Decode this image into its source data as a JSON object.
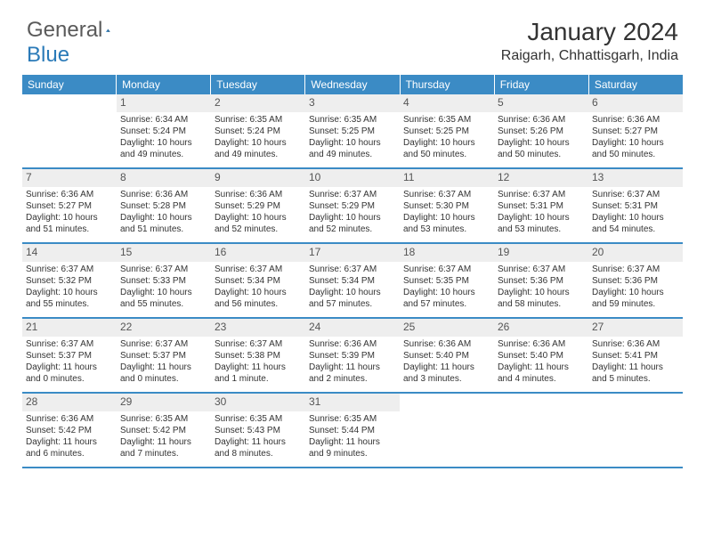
{
  "logo": {
    "general": "General",
    "blue": "Blue"
  },
  "title": "January 2024",
  "location": "Raigarh, Chhattisgarh, India",
  "colors": {
    "header_bg": "#3b8bc5",
    "header_text": "#ffffff",
    "daynum_bg": "#eeeeee",
    "border": "#3b8bc5",
    "logo_blue": "#2a7ab8",
    "logo_gray": "#5a5a5a"
  },
  "day_names": [
    "Sunday",
    "Monday",
    "Tuesday",
    "Wednesday",
    "Thursday",
    "Friday",
    "Saturday"
  ],
  "weeks": [
    [
      {
        "n": "",
        "sr": "",
        "ss": "",
        "d1": "",
        "d2": ""
      },
      {
        "n": "1",
        "sr": "Sunrise: 6:34 AM",
        "ss": "Sunset: 5:24 PM",
        "d1": "Daylight: 10 hours",
        "d2": "and 49 minutes."
      },
      {
        "n": "2",
        "sr": "Sunrise: 6:35 AM",
        "ss": "Sunset: 5:24 PM",
        "d1": "Daylight: 10 hours",
        "d2": "and 49 minutes."
      },
      {
        "n": "3",
        "sr": "Sunrise: 6:35 AM",
        "ss": "Sunset: 5:25 PM",
        "d1": "Daylight: 10 hours",
        "d2": "and 49 minutes."
      },
      {
        "n": "4",
        "sr": "Sunrise: 6:35 AM",
        "ss": "Sunset: 5:25 PM",
        "d1": "Daylight: 10 hours",
        "d2": "and 50 minutes."
      },
      {
        "n": "5",
        "sr": "Sunrise: 6:36 AM",
        "ss": "Sunset: 5:26 PM",
        "d1": "Daylight: 10 hours",
        "d2": "and 50 minutes."
      },
      {
        "n": "6",
        "sr": "Sunrise: 6:36 AM",
        "ss": "Sunset: 5:27 PM",
        "d1": "Daylight: 10 hours",
        "d2": "and 50 minutes."
      }
    ],
    [
      {
        "n": "7",
        "sr": "Sunrise: 6:36 AM",
        "ss": "Sunset: 5:27 PM",
        "d1": "Daylight: 10 hours",
        "d2": "and 51 minutes."
      },
      {
        "n": "8",
        "sr": "Sunrise: 6:36 AM",
        "ss": "Sunset: 5:28 PM",
        "d1": "Daylight: 10 hours",
        "d2": "and 51 minutes."
      },
      {
        "n": "9",
        "sr": "Sunrise: 6:36 AM",
        "ss": "Sunset: 5:29 PM",
        "d1": "Daylight: 10 hours",
        "d2": "and 52 minutes."
      },
      {
        "n": "10",
        "sr": "Sunrise: 6:37 AM",
        "ss": "Sunset: 5:29 PM",
        "d1": "Daylight: 10 hours",
        "d2": "and 52 minutes."
      },
      {
        "n": "11",
        "sr": "Sunrise: 6:37 AM",
        "ss": "Sunset: 5:30 PM",
        "d1": "Daylight: 10 hours",
        "d2": "and 53 minutes."
      },
      {
        "n": "12",
        "sr": "Sunrise: 6:37 AM",
        "ss": "Sunset: 5:31 PM",
        "d1": "Daylight: 10 hours",
        "d2": "and 53 minutes."
      },
      {
        "n": "13",
        "sr": "Sunrise: 6:37 AM",
        "ss": "Sunset: 5:31 PM",
        "d1": "Daylight: 10 hours",
        "d2": "and 54 minutes."
      }
    ],
    [
      {
        "n": "14",
        "sr": "Sunrise: 6:37 AM",
        "ss": "Sunset: 5:32 PM",
        "d1": "Daylight: 10 hours",
        "d2": "and 55 minutes."
      },
      {
        "n": "15",
        "sr": "Sunrise: 6:37 AM",
        "ss": "Sunset: 5:33 PM",
        "d1": "Daylight: 10 hours",
        "d2": "and 55 minutes."
      },
      {
        "n": "16",
        "sr": "Sunrise: 6:37 AM",
        "ss": "Sunset: 5:34 PM",
        "d1": "Daylight: 10 hours",
        "d2": "and 56 minutes."
      },
      {
        "n": "17",
        "sr": "Sunrise: 6:37 AM",
        "ss": "Sunset: 5:34 PM",
        "d1": "Daylight: 10 hours",
        "d2": "and 57 minutes."
      },
      {
        "n": "18",
        "sr": "Sunrise: 6:37 AM",
        "ss": "Sunset: 5:35 PM",
        "d1": "Daylight: 10 hours",
        "d2": "and 57 minutes."
      },
      {
        "n": "19",
        "sr": "Sunrise: 6:37 AM",
        "ss": "Sunset: 5:36 PM",
        "d1": "Daylight: 10 hours",
        "d2": "and 58 minutes."
      },
      {
        "n": "20",
        "sr": "Sunrise: 6:37 AM",
        "ss": "Sunset: 5:36 PM",
        "d1": "Daylight: 10 hours",
        "d2": "and 59 minutes."
      }
    ],
    [
      {
        "n": "21",
        "sr": "Sunrise: 6:37 AM",
        "ss": "Sunset: 5:37 PM",
        "d1": "Daylight: 11 hours",
        "d2": "and 0 minutes."
      },
      {
        "n": "22",
        "sr": "Sunrise: 6:37 AM",
        "ss": "Sunset: 5:37 PM",
        "d1": "Daylight: 11 hours",
        "d2": "and 0 minutes."
      },
      {
        "n": "23",
        "sr": "Sunrise: 6:37 AM",
        "ss": "Sunset: 5:38 PM",
        "d1": "Daylight: 11 hours",
        "d2": "and 1 minute."
      },
      {
        "n": "24",
        "sr": "Sunrise: 6:36 AM",
        "ss": "Sunset: 5:39 PM",
        "d1": "Daylight: 11 hours",
        "d2": "and 2 minutes."
      },
      {
        "n": "25",
        "sr": "Sunrise: 6:36 AM",
        "ss": "Sunset: 5:40 PM",
        "d1": "Daylight: 11 hours",
        "d2": "and 3 minutes."
      },
      {
        "n": "26",
        "sr": "Sunrise: 6:36 AM",
        "ss": "Sunset: 5:40 PM",
        "d1": "Daylight: 11 hours",
        "d2": "and 4 minutes."
      },
      {
        "n": "27",
        "sr": "Sunrise: 6:36 AM",
        "ss": "Sunset: 5:41 PM",
        "d1": "Daylight: 11 hours",
        "d2": "and 5 minutes."
      }
    ],
    [
      {
        "n": "28",
        "sr": "Sunrise: 6:36 AM",
        "ss": "Sunset: 5:42 PM",
        "d1": "Daylight: 11 hours",
        "d2": "and 6 minutes."
      },
      {
        "n": "29",
        "sr": "Sunrise: 6:35 AM",
        "ss": "Sunset: 5:42 PM",
        "d1": "Daylight: 11 hours",
        "d2": "and 7 minutes."
      },
      {
        "n": "30",
        "sr": "Sunrise: 6:35 AM",
        "ss": "Sunset: 5:43 PM",
        "d1": "Daylight: 11 hours",
        "d2": "and 8 minutes."
      },
      {
        "n": "31",
        "sr": "Sunrise: 6:35 AM",
        "ss": "Sunset: 5:44 PM",
        "d1": "Daylight: 11 hours",
        "d2": "and 9 minutes."
      },
      {
        "n": "",
        "sr": "",
        "ss": "",
        "d1": "",
        "d2": ""
      },
      {
        "n": "",
        "sr": "",
        "ss": "",
        "d1": "",
        "d2": ""
      },
      {
        "n": "",
        "sr": "",
        "ss": "",
        "d1": "",
        "d2": ""
      }
    ]
  ]
}
